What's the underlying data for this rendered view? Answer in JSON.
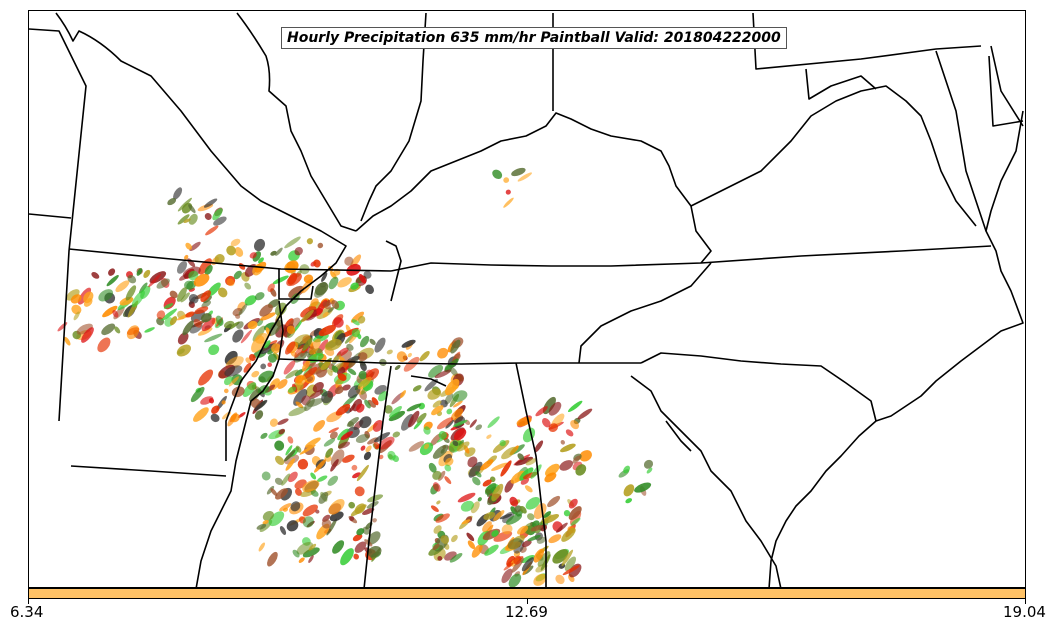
{
  "title": "Hourly Precipitation 635 mm/hr Paintball Valid: 201804222000",
  "colorbar": {
    "color": "#ffc266",
    "ticks": [
      "6.34",
      "12.69",
      "19.04"
    ]
  },
  "palette": [
    "#ff8c00",
    "#e63000",
    "#d11",
    "#8b1a1a",
    "#556b2f",
    "#6b8e23",
    "#2e8b22",
    "#32cd32",
    "#b5a020",
    "#ffa31a",
    "#a0522d",
    "#333333"
  ],
  "layers": [
    "state-borders",
    "coastlines",
    "precipitation-paintball"
  ]
}
